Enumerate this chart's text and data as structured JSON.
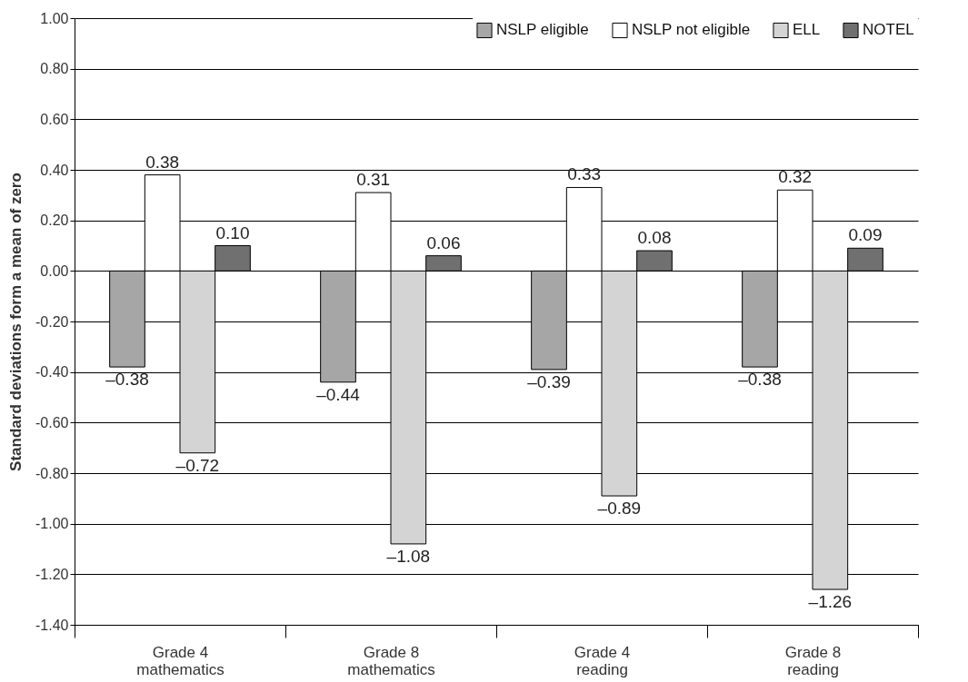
{
  "chart_data": {
    "type": "bar",
    "ylabel": "Standard deviations form a mean of zero",
    "categories": [
      "Grade 4\nmathematics",
      "Grade 8\nmathematics",
      "Grade 4\nreading",
      "Grade 8\nreading"
    ],
    "series": [
      {
        "name": "NSLP eligible",
        "color": "#a6a6a6",
        "values": [
          -0.38,
          -0.44,
          -0.39,
          -0.38
        ],
        "value_labels": [
          "–0.38",
          "–0.44",
          "–0.39",
          "–0.38"
        ]
      },
      {
        "name": "NSLP not eligible",
        "color": "#ffffff",
        "values": [
          0.38,
          0.31,
          0.33,
          0.32
        ],
        "value_labels": [
          "0.38",
          "0.31",
          "0.33",
          "0.32"
        ]
      },
      {
        "name": "ELL",
        "color": "#d4d4d4",
        "values": [
          -0.72,
          -1.08,
          -0.89,
          -1.26
        ],
        "value_labels": [
          "–0.72",
          "–1.08",
          "–0.89",
          "–1.26"
        ]
      },
      {
        "name": "NOTEL",
        "color": "#707070",
        "values": [
          0.1,
          0.06,
          0.08,
          0.09
        ],
        "value_labels": [
          "0.10",
          "0.06",
          "0.08",
          "0.09"
        ]
      }
    ],
    "ylim": [
      -1.4,
      1.0
    ],
    "yticks": [
      {
        "value": -1.4,
        "label": "-1.40"
      },
      {
        "value": -1.2,
        "label": "-1.20"
      },
      {
        "value": -1.0,
        "label": "-1.00"
      },
      {
        "value": -0.8,
        "label": "-0.80"
      },
      {
        "value": -0.6,
        "label": "-0.60"
      },
      {
        "value": -0.4,
        "label": "-0.40"
      },
      {
        "value": -0.2,
        "label": "-0.20"
      },
      {
        "value": 0,
        "label": "0.00"
      },
      {
        "value": 0.2,
        "label": "0.20"
      },
      {
        "value": 0.4,
        "label": "0.40"
      },
      {
        "value": 0.6,
        "label": "0.60"
      },
      {
        "value": 0.8,
        "label": "0.80"
      },
      {
        "value": 1.0,
        "label": "1.00"
      }
    ],
    "grid": "y",
    "legend": "top right"
  }
}
